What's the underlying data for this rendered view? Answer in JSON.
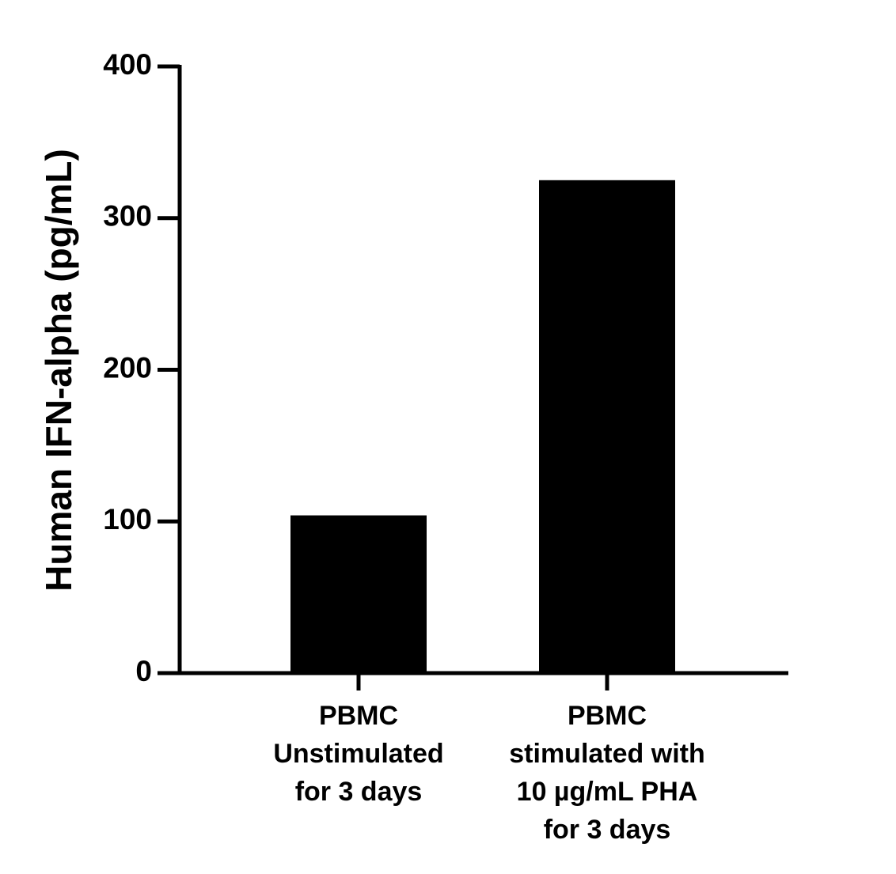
{
  "chart_data": {
    "type": "bar",
    "y_label": "Human IFN-alpha (pg/mL)",
    "categories": [
      [
        "PBMC",
        "Unstimulated",
        "for 3 days"
      ],
      [
        "PBMC",
        "stimulated with",
        "10 µg/mL PHA",
        "for 3 days"
      ]
    ],
    "values": [
      104,
      325
    ],
    "color": "#000000",
    "ylim": [
      0,
      400
    ],
    "yticks": [
      0,
      100,
      200,
      300,
      400
    ]
  }
}
